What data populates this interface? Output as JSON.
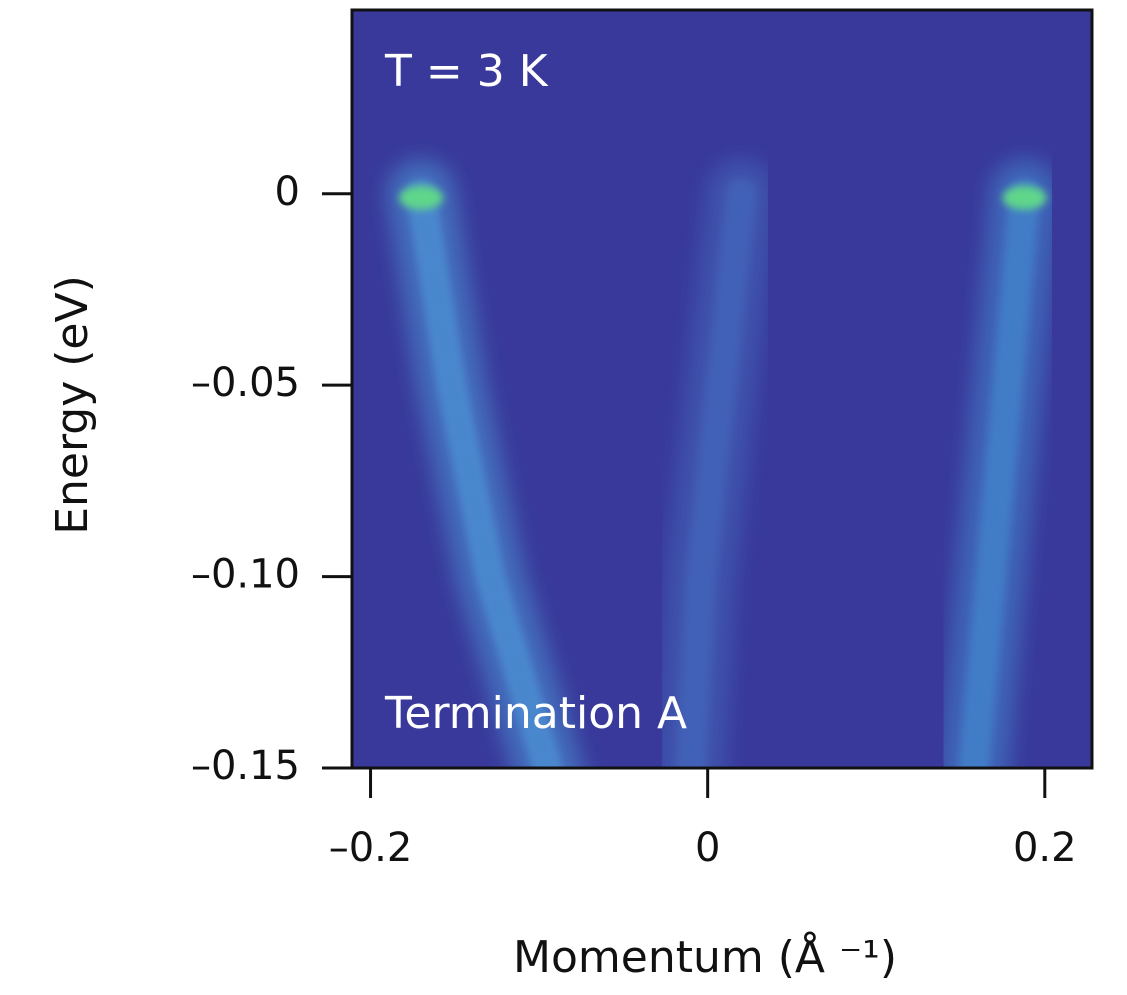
{
  "chart_data": {
    "type": "heatmap",
    "x_label": "Momentum (Å ⁻¹)",
    "y_label": "Energy (eV)",
    "annotations": [
      "T = 3  K",
      "Termination A"
    ],
    "background_color": "#38399a",
    "peak_color": "#5ed68a",
    "series": [
      {
        "color": "#4d93d6",
        "x": [
          -0.17,
          -0.152,
          -0.129,
          -0.095
        ],
        "values": [
          0,
          -0.05,
          -0.1,
          -0.15
        ]
      },
      {
        "color": "#4386cf",
        "x": [
          0.188,
          0.178,
          0.168,
          0.158
        ],
        "values": [
          0,
          -0.05,
          -0.1,
          -0.15
        ]
      },
      {
        "color": "#4466bb",
        "x": [
          0.02,
          0.008,
          -0.004,
          -0.01
        ],
        "values": [
          0,
          -0.05,
          -0.1,
          -0.15
        ]
      }
    ],
    "xlim": [
      -0.211,
      0.228
    ],
    "ylim": [
      -0.15,
      0.048
    ],
    "xticks": [
      {
        "value": -0.2,
        "label": "–0.2"
      },
      0,
      0.2
    ],
    "yticks": [
      0,
      {
        "value": -0.05,
        "label": "–0.05"
      },
      {
        "value": -0.1,
        "label": "–0.10"
      },
      {
        "value": -0.15,
        "label": "–0.15"
      }
    ]
  }
}
